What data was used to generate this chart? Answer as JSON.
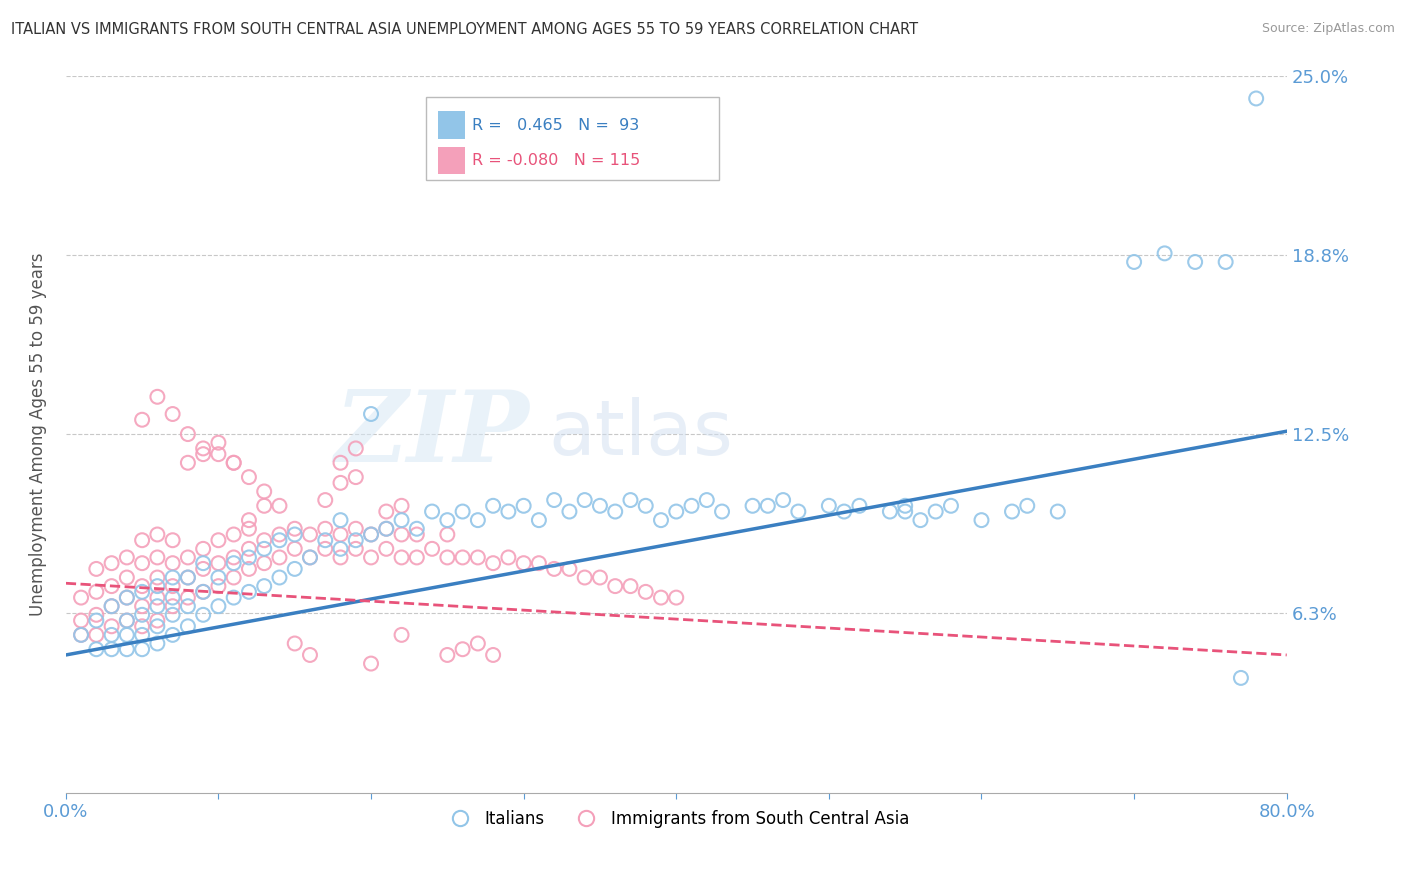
{
  "title": "ITALIAN VS IMMIGRANTS FROM SOUTH CENTRAL ASIA UNEMPLOYMENT AMONG AGES 55 TO 59 YEARS CORRELATION CHART",
  "source": "Source: ZipAtlas.com",
  "ylabel": "Unemployment Among Ages 55 to 59 years",
  "xlim": [
    0.0,
    0.8
  ],
  "ylim": [
    0.0,
    0.25
  ],
  "xticks": [
    0.0,
    0.1,
    0.2,
    0.3,
    0.4,
    0.5,
    0.6,
    0.7,
    0.8
  ],
  "xticklabels": [
    "0.0%",
    "",
    "",
    "",
    "",
    "",
    "",
    "",
    "80.0%"
  ],
  "ytick_values": [
    0.0,
    0.0625,
    0.125,
    0.1875,
    0.25
  ],
  "ytick_labels": [
    "",
    "6.3%",
    "12.5%",
    "18.8%",
    "25.0%"
  ],
  "blue_R": 0.465,
  "blue_N": 93,
  "pink_R": -0.08,
  "pink_N": 115,
  "blue_color": "#92C5E8",
  "pink_color": "#F4A0BA",
  "trend_blue_color": "#3A7FC1",
  "trend_pink_color": "#E8537A",
  "legend_label_blue": "Italians",
  "legend_label_pink": "Immigrants from South Central Asia",
  "watermark_zip": "ZIP",
  "watermark_atlas": "atlas",
  "blue_x": [
    0.01,
    0.02,
    0.02,
    0.03,
    0.03,
    0.03,
    0.04,
    0.04,
    0.04,
    0.04,
    0.05,
    0.05,
    0.05,
    0.05,
    0.06,
    0.06,
    0.06,
    0.06,
    0.07,
    0.07,
    0.07,
    0.07,
    0.08,
    0.08,
    0.08,
    0.09,
    0.09,
    0.09,
    0.1,
    0.1,
    0.11,
    0.11,
    0.12,
    0.12,
    0.13,
    0.13,
    0.14,
    0.14,
    0.15,
    0.15,
    0.16,
    0.17,
    0.18,
    0.18,
    0.19,
    0.2,
    0.21,
    0.22,
    0.23,
    0.24,
    0.25,
    0.26,
    0.27,
    0.28,
    0.29,
    0.3,
    0.31,
    0.32,
    0.33,
    0.34,
    0.35,
    0.36,
    0.37,
    0.38,
    0.39,
    0.4,
    0.41,
    0.42,
    0.43,
    0.45,
    0.46,
    0.47,
    0.48,
    0.5,
    0.51,
    0.52,
    0.54,
    0.56,
    0.57,
    0.58,
    0.6,
    0.62,
    0.63,
    0.65,
    0.7,
    0.72,
    0.74,
    0.76,
    0.77,
    0.78,
    0.55,
    0.55,
    0.2
  ],
  "blue_y": [
    0.055,
    0.05,
    0.06,
    0.05,
    0.055,
    0.065,
    0.05,
    0.055,
    0.06,
    0.068,
    0.05,
    0.055,
    0.062,
    0.07,
    0.052,
    0.058,
    0.065,
    0.072,
    0.055,
    0.062,
    0.068,
    0.075,
    0.058,
    0.065,
    0.075,
    0.062,
    0.07,
    0.08,
    0.065,
    0.075,
    0.068,
    0.08,
    0.07,
    0.082,
    0.072,
    0.085,
    0.075,
    0.088,
    0.078,
    0.09,
    0.082,
    0.088,
    0.085,
    0.095,
    0.088,
    0.09,
    0.092,
    0.095,
    0.092,
    0.098,
    0.095,
    0.098,
    0.095,
    0.1,
    0.098,
    0.1,
    0.095,
    0.102,
    0.098,
    0.102,
    0.1,
    0.098,
    0.102,
    0.1,
    0.095,
    0.098,
    0.1,
    0.102,
    0.098,
    0.1,
    0.1,
    0.102,
    0.098,
    0.1,
    0.098,
    0.1,
    0.098,
    0.095,
    0.098,
    0.1,
    0.095,
    0.098,
    0.1,
    0.098,
    0.185,
    0.188,
    0.185,
    0.185,
    0.04,
    0.242,
    0.098,
    0.1,
    0.132
  ],
  "pink_x": [
    0.01,
    0.01,
    0.01,
    0.02,
    0.02,
    0.02,
    0.02,
    0.03,
    0.03,
    0.03,
    0.03,
    0.04,
    0.04,
    0.04,
    0.04,
    0.05,
    0.05,
    0.05,
    0.05,
    0.05,
    0.06,
    0.06,
    0.06,
    0.06,
    0.06,
    0.07,
    0.07,
    0.07,
    0.07,
    0.08,
    0.08,
    0.08,
    0.09,
    0.09,
    0.09,
    0.1,
    0.1,
    0.1,
    0.11,
    0.11,
    0.11,
    0.12,
    0.12,
    0.12,
    0.13,
    0.13,
    0.14,
    0.14,
    0.15,
    0.15,
    0.16,
    0.16,
    0.17,
    0.17,
    0.18,
    0.18,
    0.19,
    0.19,
    0.2,
    0.2,
    0.21,
    0.21,
    0.22,
    0.22,
    0.23,
    0.23,
    0.24,
    0.25,
    0.25,
    0.26,
    0.27,
    0.28,
    0.29,
    0.3,
    0.31,
    0.32,
    0.33,
    0.34,
    0.35,
    0.36,
    0.37,
    0.38,
    0.39,
    0.4,
    0.21,
    0.22,
    0.17,
    0.18,
    0.19,
    0.08,
    0.09,
    0.1,
    0.12,
    0.13,
    0.11,
    0.15,
    0.16,
    0.2,
    0.25,
    0.26,
    0.27,
    0.28,
    0.05,
    0.06,
    0.07,
    0.08,
    0.09,
    0.1,
    0.11,
    0.12,
    0.13,
    0.14,
    0.18,
    0.19,
    0.22
  ],
  "pink_y": [
    0.055,
    0.06,
    0.068,
    0.055,
    0.062,
    0.07,
    0.078,
    0.058,
    0.065,
    0.072,
    0.08,
    0.06,
    0.068,
    0.075,
    0.082,
    0.058,
    0.065,
    0.072,
    0.08,
    0.088,
    0.06,
    0.068,
    0.075,
    0.082,
    0.09,
    0.065,
    0.072,
    0.08,
    0.088,
    0.068,
    0.075,
    0.082,
    0.07,
    0.078,
    0.085,
    0.072,
    0.08,
    0.088,
    0.075,
    0.082,
    0.09,
    0.078,
    0.085,
    0.092,
    0.08,
    0.088,
    0.082,
    0.09,
    0.085,
    0.092,
    0.082,
    0.09,
    0.085,
    0.092,
    0.082,
    0.09,
    0.085,
    0.092,
    0.082,
    0.09,
    0.085,
    0.092,
    0.082,
    0.09,
    0.082,
    0.09,
    0.085,
    0.082,
    0.09,
    0.082,
    0.082,
    0.08,
    0.082,
    0.08,
    0.08,
    0.078,
    0.078,
    0.075,
    0.075,
    0.072,
    0.072,
    0.07,
    0.068,
    0.068,
    0.098,
    0.1,
    0.102,
    0.108,
    0.11,
    0.115,
    0.118,
    0.122,
    0.095,
    0.1,
    0.115,
    0.052,
    0.048,
    0.045,
    0.048,
    0.05,
    0.052,
    0.048,
    0.13,
    0.138,
    0.132,
    0.125,
    0.12,
    0.118,
    0.115,
    0.11,
    0.105,
    0.1,
    0.115,
    0.12,
    0.055
  ],
  "trend_blue_x0": 0.0,
  "trend_blue_y0": 0.048,
  "trend_blue_x1": 0.8,
  "trend_blue_y1": 0.126,
  "trend_pink_x0": 0.0,
  "trend_pink_y0": 0.073,
  "trend_pink_x1": 0.8,
  "trend_pink_y1": 0.048
}
